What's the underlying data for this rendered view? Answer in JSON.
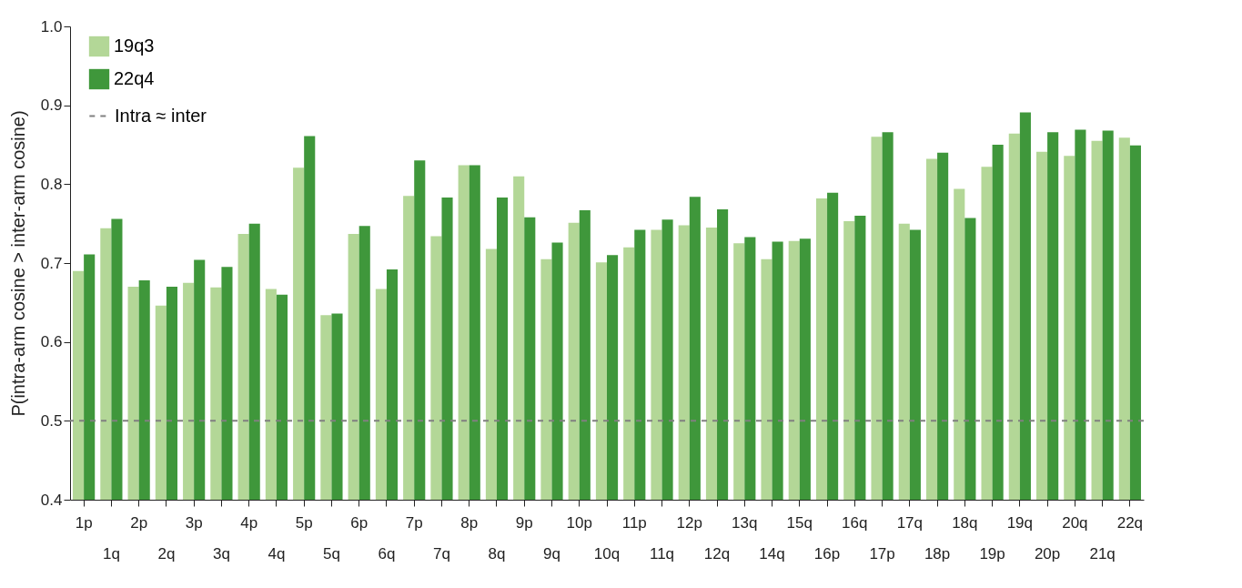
{
  "chart_data": {
    "type": "bar",
    "ylabel": "P(intra-arm cosine > inter-arm cosine)",
    "categories": [
      "1p",
      "1q",
      "2p",
      "2q",
      "3p",
      "3q",
      "4p",
      "4q",
      "5p",
      "5q",
      "6p",
      "6q",
      "7p",
      "7q",
      "8p",
      "8q",
      "9p",
      "9q",
      "10p",
      "10q",
      "11p",
      "11q",
      "12p",
      "12q",
      "13q",
      "14q",
      "15q",
      "16p",
      "16q",
      "17p",
      "17q",
      "18p",
      "18q",
      "19p",
      "19q",
      "20p",
      "20q",
      "21q",
      "22q"
    ],
    "series": [
      {
        "name": "19q3",
        "color": "#b3d797",
        "values": [
          0.69,
          0.744,
          0.67,
          0.646,
          0.675,
          0.669,
          0.737,
          0.667,
          0.821,
          0.634,
          0.737,
          0.667,
          0.785,
          0.734,
          0.824,
          0.718,
          0.81,
          0.705,
          0.751,
          0.701,
          0.72,
          0.742,
          0.748,
          0.745,
          0.725,
          0.705,
          0.728,
          0.782,
          0.753,
          0.86,
          0.75,
          0.832,
          0.794,
          0.822,
          0.864,
          0.841,
          0.836,
          0.855,
          0.859
        ]
      },
      {
        "name": "22q4",
        "color": "#3f973b",
        "values": [
          0.711,
          0.756,
          0.678,
          0.67,
          0.704,
          0.695,
          0.75,
          0.66,
          0.861,
          0.636,
          0.747,
          0.692,
          0.83,
          0.783,
          0.824,
          0.783,
          0.758,
          0.726,
          0.767,
          0.71,
          0.742,
          0.755,
          0.784,
          0.768,
          0.733,
          0.727,
          0.731,
          0.789,
          0.76,
          0.866,
          0.742,
          0.84,
          0.757,
          0.85,
          0.891,
          0.866,
          0.869,
          0.868,
          0.849
        ]
      }
    ],
    "ylim": [
      0.4,
      1.0
    ],
    "yticks": [
      0.4,
      0.5,
      0.6,
      0.7,
      0.8,
      0.9,
      {
        "value": 1.0,
        "label": "1.0"
      }
    ],
    "ref_lines": [
      {
        "axis": "y",
        "value": 0.5,
        "label": "Intra ≈ inter",
        "color": "#808080",
        "line_style": "dashed"
      }
    ],
    "legend": "top left",
    "grid": false
  }
}
